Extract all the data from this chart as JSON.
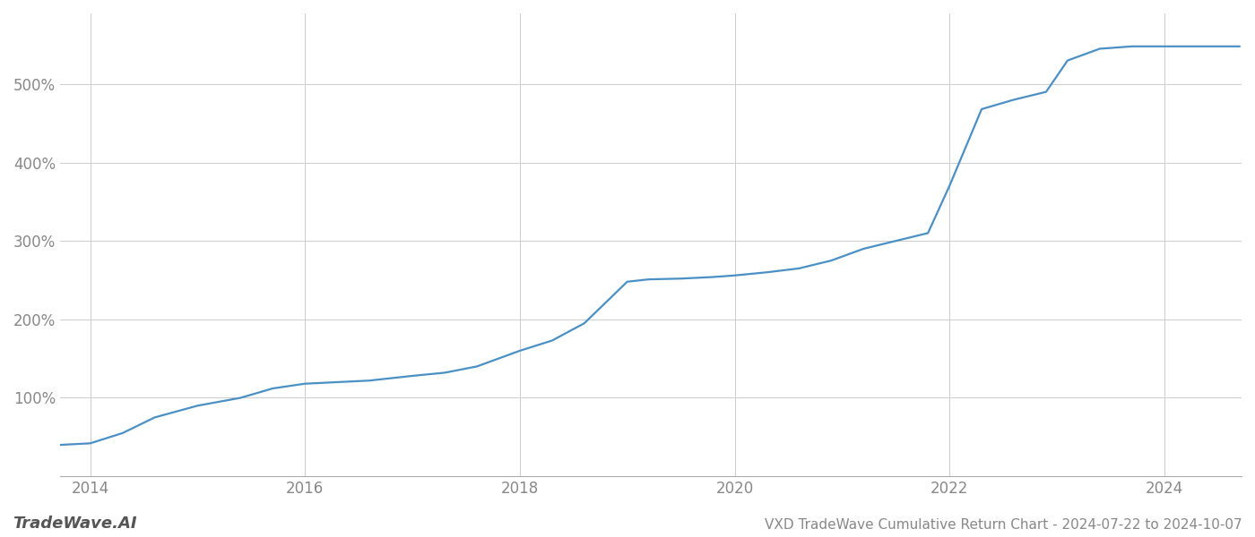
{
  "title": "VXD TradeWave Cumulative Return Chart - 2024-07-22 to 2024-10-07",
  "watermark": "TradeWave.AI",
  "line_color": "#4a90c4",
  "background_color": "#ffffff",
  "grid_color": "#cccccc",
  "x_years": [
    2013.72,
    2014.0,
    2014.3,
    2014.6,
    2015.0,
    2015.4,
    2015.7,
    2016.0,
    2016.3,
    2016.6,
    2017.0,
    2017.3,
    2017.6,
    2018.0,
    2018.3,
    2018.6,
    2019.0,
    2019.2,
    2019.5,
    2019.8,
    2020.0,
    2020.3,
    2020.6,
    2020.9,
    2021.2,
    2021.5,
    2021.8,
    2022.0,
    2022.3,
    2022.6,
    2022.9,
    2023.1,
    2023.4,
    2023.7,
    2024.0,
    2024.3,
    2024.7
  ],
  "y_values": [
    40,
    42,
    55,
    75,
    90,
    100,
    112,
    118,
    120,
    122,
    128,
    132,
    140,
    160,
    173,
    195,
    248,
    251,
    252,
    254,
    256,
    260,
    265,
    275,
    290,
    300,
    310,
    370,
    468,
    480,
    490,
    530,
    545,
    548,
    548,
    548,
    548
  ],
  "xlim": [
    2013.72,
    2024.72
  ],
  "ylim": [
    0,
    590
  ],
  "yticks": [
    100,
    200,
    300,
    400,
    500
  ],
  "ytick_labels": [
    "100%",
    "200%",
    "300%",
    "400%",
    "500%"
  ],
  "xticks": [
    2014,
    2016,
    2018,
    2020,
    2022,
    2024
  ],
  "title_fontsize": 11,
  "axis_fontsize": 12,
  "watermark_fontsize": 13,
  "line_width": 1.6
}
